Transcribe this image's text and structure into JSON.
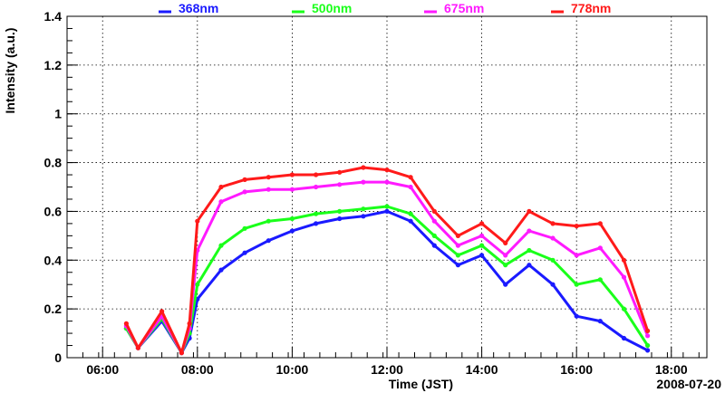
{
  "chart_data": {
    "type": "scatter",
    "xlabel": "Time (JST)",
    "ylabel": "Intensity (a.u.)",
    "date_label": "2008-07-20",
    "xlim": [
      "05:15",
      "18:45"
    ],
    "ylim": [
      0,
      1.4
    ],
    "x_ticks": [
      "06:00",
      "08:00",
      "10:00",
      "12:00",
      "14:00",
      "16:00",
      "18:00"
    ],
    "y_ticks": [
      "0",
      "0.2",
      "0.4",
      "0.6",
      "0.8",
      "1",
      "1.2",
      "1.4"
    ],
    "grid": true,
    "legend_position": "top",
    "series": [
      {
        "name": "368nm",
        "color": "#1a1aff",
        "points": [
          [
            "06:30",
            0.12
          ],
          [
            "06:45",
            0.04
          ],
          [
            "07:15",
            0.15
          ],
          [
            "07:40",
            0.02
          ],
          [
            "07:50",
            0.08
          ],
          [
            "08:00",
            0.24
          ],
          [
            "08:30",
            0.36
          ],
          [
            "09:00",
            0.43
          ],
          [
            "09:30",
            0.48
          ],
          [
            "10:00",
            0.52
          ],
          [
            "10:30",
            0.55
          ],
          [
            "11:00",
            0.57
          ],
          [
            "11:30",
            0.58
          ],
          [
            "12:00",
            0.6
          ],
          [
            "12:30",
            0.56
          ],
          [
            "13:00",
            0.46
          ],
          [
            "13:30",
            0.38
          ],
          [
            "14:00",
            0.42
          ],
          [
            "14:30",
            0.3
          ],
          [
            "15:00",
            0.38
          ],
          [
            "15:30",
            0.3
          ],
          [
            "16:00",
            0.17
          ],
          [
            "16:30",
            0.15
          ],
          [
            "17:00",
            0.08
          ],
          [
            "17:30",
            0.03
          ]
        ]
      },
      {
        "name": "500nm",
        "color": "#1aff1a",
        "points": [
          [
            "06:30",
            0.12
          ],
          [
            "06:45",
            0.04
          ],
          [
            "07:15",
            0.16
          ],
          [
            "07:40",
            0.02
          ],
          [
            "07:50",
            0.1
          ],
          [
            "08:00",
            0.3
          ],
          [
            "08:30",
            0.46
          ],
          [
            "09:00",
            0.53
          ],
          [
            "09:30",
            0.56
          ],
          [
            "10:00",
            0.57
          ],
          [
            "10:30",
            0.59
          ],
          [
            "11:00",
            0.6
          ],
          [
            "11:30",
            0.61
          ],
          [
            "12:00",
            0.62
          ],
          [
            "12:30",
            0.59
          ],
          [
            "13:00",
            0.5
          ],
          [
            "13:30",
            0.42
          ],
          [
            "14:00",
            0.46
          ],
          [
            "14:30",
            0.38
          ],
          [
            "15:00",
            0.44
          ],
          [
            "15:30",
            0.4
          ],
          [
            "16:00",
            0.3
          ],
          [
            "16:30",
            0.32
          ],
          [
            "17:00",
            0.2
          ],
          [
            "17:30",
            0.05
          ]
        ]
      },
      {
        "name": "675nm",
        "color": "#ff1aff",
        "points": [
          [
            "06:30",
            0.13
          ],
          [
            "06:45",
            0.04
          ],
          [
            "07:15",
            0.17
          ],
          [
            "07:40",
            0.02
          ],
          [
            "07:50",
            0.12
          ],
          [
            "08:00",
            0.44
          ],
          [
            "08:30",
            0.64
          ],
          [
            "09:00",
            0.68
          ],
          [
            "09:30",
            0.69
          ],
          [
            "10:00",
            0.69
          ],
          [
            "10:30",
            0.7
          ],
          [
            "11:00",
            0.71
          ],
          [
            "11:30",
            0.72
          ],
          [
            "12:00",
            0.72
          ],
          [
            "12:30",
            0.7
          ],
          [
            "13:00",
            0.56
          ],
          [
            "13:30",
            0.46
          ],
          [
            "14:00",
            0.5
          ],
          [
            "14:30",
            0.42
          ],
          [
            "15:00",
            0.52
          ],
          [
            "15:30",
            0.49
          ],
          [
            "16:00",
            0.42
          ],
          [
            "16:30",
            0.45
          ],
          [
            "17:00",
            0.33
          ],
          [
            "17:30",
            0.09
          ]
        ]
      },
      {
        "name": "778nm",
        "color": "#ff1a1a",
        "points": [
          [
            "06:30",
            0.14
          ],
          [
            "06:45",
            0.04
          ],
          [
            "07:15",
            0.19
          ],
          [
            "07:40",
            0.02
          ],
          [
            "07:50",
            0.14
          ],
          [
            "08:00",
            0.56
          ],
          [
            "08:30",
            0.7
          ],
          [
            "09:00",
            0.73
          ],
          [
            "09:30",
            0.74
          ],
          [
            "10:00",
            0.75
          ],
          [
            "10:30",
            0.75
          ],
          [
            "11:00",
            0.76
          ],
          [
            "11:30",
            0.78
          ],
          [
            "12:00",
            0.77
          ],
          [
            "12:30",
            0.74
          ],
          [
            "13:00",
            0.6
          ],
          [
            "13:30",
            0.5
          ],
          [
            "14:00",
            0.55
          ],
          [
            "14:30",
            0.47
          ],
          [
            "15:00",
            0.6
          ],
          [
            "15:30",
            0.55
          ],
          [
            "16:00",
            0.54
          ],
          [
            "16:30",
            0.55
          ],
          [
            "17:00",
            0.4
          ],
          [
            "17:30",
            0.11
          ]
        ]
      }
    ]
  }
}
